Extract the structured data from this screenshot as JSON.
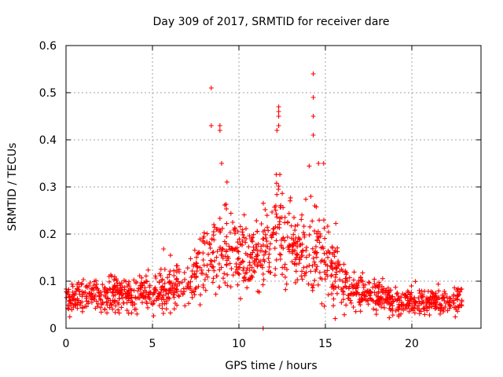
{
  "chart_data": {
    "type": "scatter",
    "title": "Day 309 of 2017, SRMTID for receiver dare",
    "xlabel": "GPS time / hours",
    "ylabel": "SRMTID / TECUs",
    "xlim": [
      0,
      24
    ],
    "ylim": [
      0,
      0.6
    ],
    "xticks": [
      "0",
      "5",
      "10",
      "15",
      "20"
    ],
    "yticks": [
      "0",
      "0.1",
      "0.2",
      "0.3",
      "0.4",
      "0.5",
      "0.6"
    ],
    "grid": true,
    "marker": "+",
    "color": "#ff0000",
    "x_end_hours": 22.9,
    "outlier_points": [
      {
        "x": 8.4,
        "y": 0.51
      },
      {
        "x": 8.4,
        "y": 0.43
      },
      {
        "x": 8.9,
        "y": 0.43
      },
      {
        "x": 8.9,
        "y": 0.42
      },
      {
        "x": 9.0,
        "y": 0.35
      },
      {
        "x": 12.3,
        "y": 0.47
      },
      {
        "x": 12.3,
        "y": 0.46
      },
      {
        "x": 12.3,
        "y": 0.45
      },
      {
        "x": 12.3,
        "y": 0.43
      },
      {
        "x": 12.2,
        "y": 0.42
      },
      {
        "x": 14.3,
        "y": 0.54
      },
      {
        "x": 14.3,
        "y": 0.49
      },
      {
        "x": 14.3,
        "y": 0.45
      },
      {
        "x": 14.3,
        "y": 0.41
      },
      {
        "x": 14.6,
        "y": 0.35
      },
      {
        "x": 14.9,
        "y": 0.35
      },
      {
        "x": 11.4,
        "y": 0.0
      }
    ],
    "envelope": [
      {
        "x": 0,
        "median": 0.065,
        "spread": 0.025
      },
      {
        "x": 2,
        "median": 0.07,
        "spread": 0.03
      },
      {
        "x": 4,
        "median": 0.075,
        "spread": 0.035
      },
      {
        "x": 6,
        "median": 0.08,
        "spread": 0.04
      },
      {
        "x": 7.5,
        "median": 0.11,
        "spread": 0.05
      },
      {
        "x": 8.5,
        "median": 0.17,
        "spread": 0.08
      },
      {
        "x": 9.5,
        "median": 0.17,
        "spread": 0.08
      },
      {
        "x": 10.5,
        "median": 0.15,
        "spread": 0.06
      },
      {
        "x": 11.5,
        "median": 0.17,
        "spread": 0.07
      },
      {
        "x": 12.3,
        "median": 0.22,
        "spread": 0.1
      },
      {
        "x": 13.3,
        "median": 0.15,
        "spread": 0.07
      },
      {
        "x": 14.3,
        "median": 0.16,
        "spread": 0.1
      },
      {
        "x": 15.3,
        "median": 0.13,
        "spread": 0.07
      },
      {
        "x": 16.5,
        "median": 0.08,
        "spread": 0.04
      },
      {
        "x": 18,
        "median": 0.07,
        "spread": 0.03
      },
      {
        "x": 19,
        "median": 0.055,
        "spread": 0.025
      },
      {
        "x": 21,
        "median": 0.055,
        "spread": 0.025
      },
      {
        "x": 22.9,
        "median": 0.06,
        "spread": 0.025
      }
    ]
  }
}
